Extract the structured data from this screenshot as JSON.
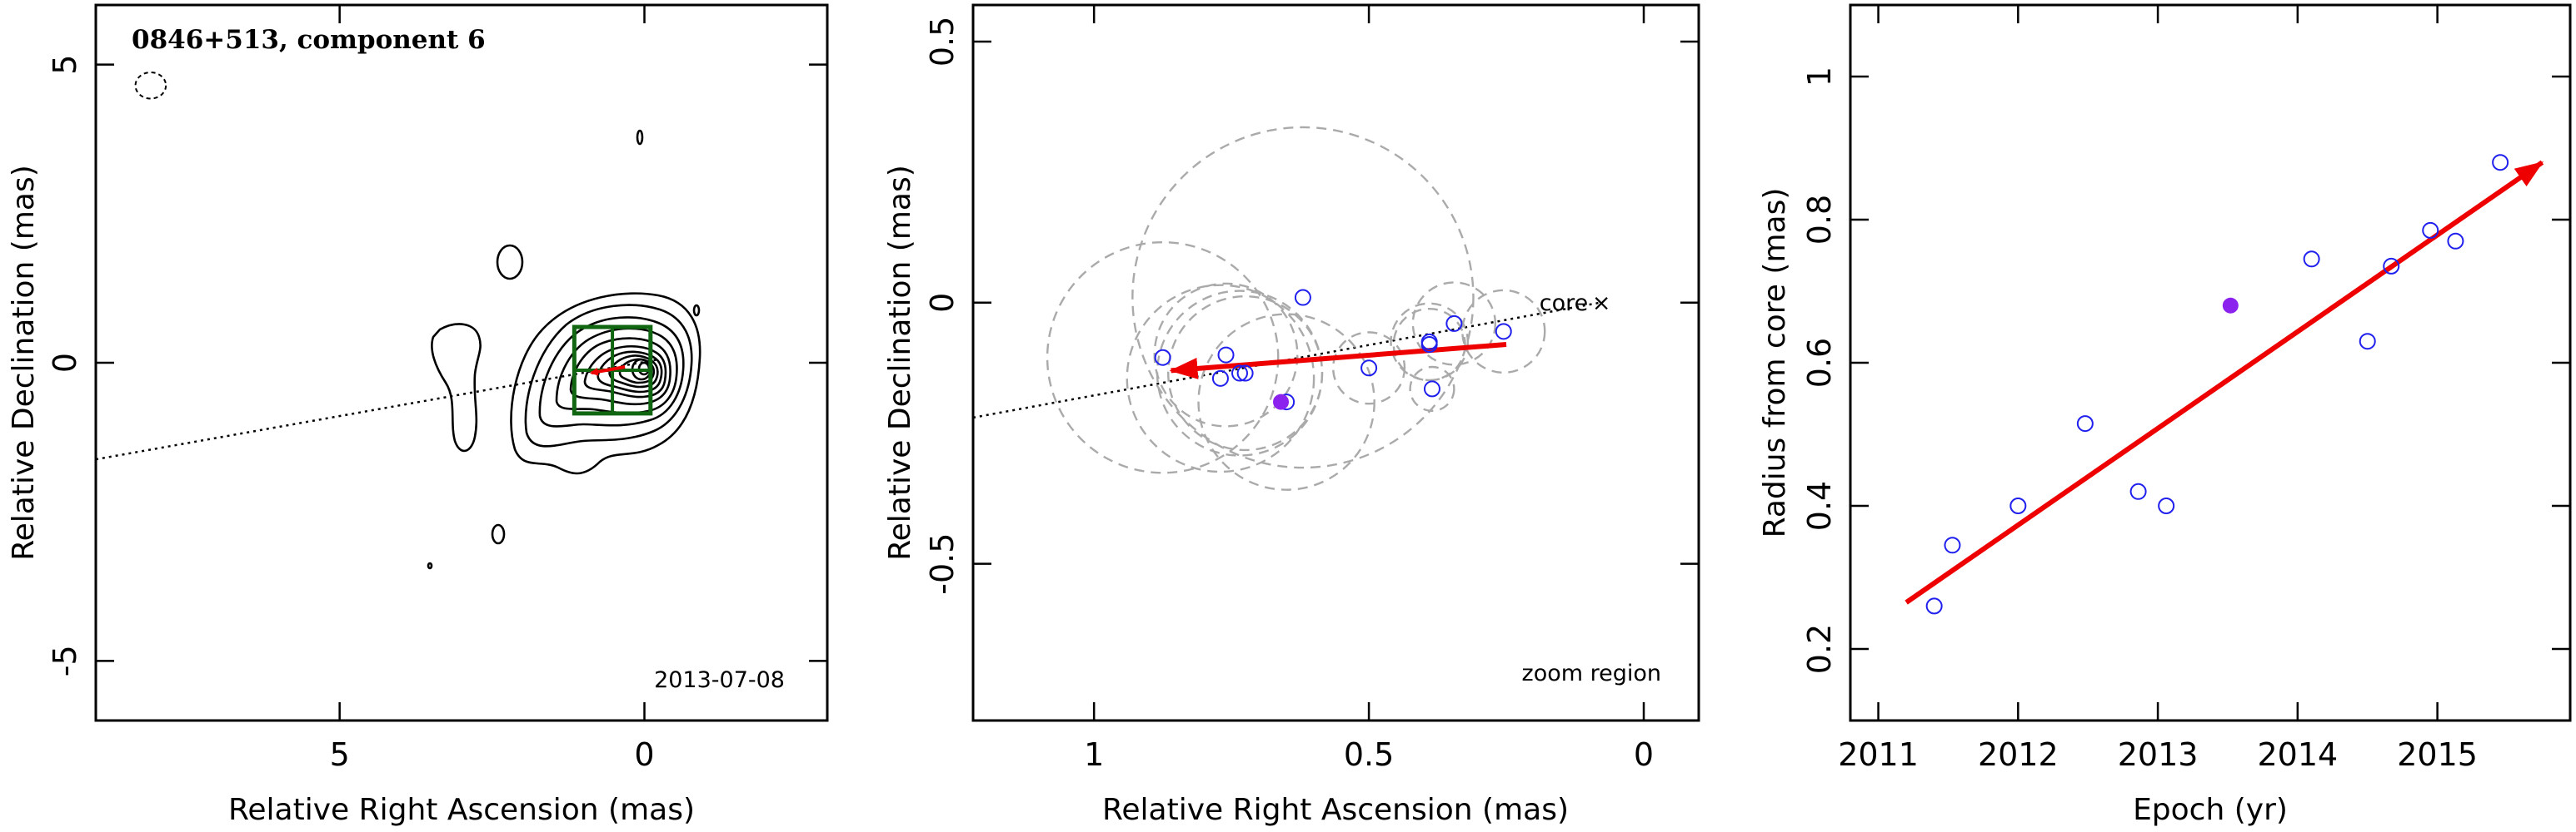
{
  "colors": {
    "red_arrow": "#ee0000",
    "open_point": "#2020ee",
    "filled_point": "#8b22ee",
    "zoom_box": "#116611",
    "dashed_circle": "#aaaaaa",
    "contour": "#000000"
  },
  "chart_data": [
    {
      "type": "contour",
      "title": "0846+513, component 6",
      "date_label": "2013-07-08",
      "xlabel": "Relative Right Ascension (mas)",
      "ylabel": "Relative Declination (mas)",
      "xlim": [
        9,
        -3
      ],
      "ylim": [
        -6,
        6
      ],
      "xticks": [
        5,
        0
      ],
      "yticks": [
        5,
        0,
        -5
      ],
      "jet_axis": [
        [
          9,
          -1.62
        ],
        [
          -0.2,
          0.05
        ]
      ],
      "beam": {
        "x": 8.1,
        "y": 4.65,
        "rx": 0.25,
        "ry": 0.22
      },
      "zoom_box": {
        "x": [
          1.15,
          -0.1
        ],
        "y": [
          -0.85,
          0.6
        ]
      },
      "arrow": {
        "from": [
          0.32,
          -0.07
        ],
        "to": [
          0.87,
          -0.17
        ]
      },
      "grid": false
    },
    {
      "type": "scatter",
      "subtitle": "zoom region",
      "core_label": "core",
      "core_marker": "×",
      "xlabel": "Relative Right Ascension (mas)",
      "ylabel": "Relative Declination (mas)",
      "xlim": [
        1.22,
        -0.1
      ],
      "ylim": [
        -0.8,
        0.57
      ],
      "xticks": [
        1,
        0.5,
        0
      ],
      "yticks": [
        0.5,
        0,
        -0.5
      ],
      "core": [
        0.08,
        0.0
      ],
      "jet_axis": [
        [
          1.22,
          -0.22
        ],
        [
          0.08,
          0.0
        ]
      ],
      "arrow": {
        "from": [
          0.25,
          -0.08
        ],
        "to": [
          0.86,
          -0.13
        ]
      },
      "points": [
        {
          "x": 0.875,
          "y": -0.105,
          "r": 0.21,
          "filled": false
        },
        {
          "x": 0.76,
          "y": -0.1,
          "r": 0.13,
          "filled": false
        },
        {
          "x": 0.77,
          "y": -0.145,
          "r": 0.17,
          "filled": false
        },
        {
          "x": 0.735,
          "y": -0.135,
          "r": 0.15,
          "filled": false
        },
        {
          "x": 0.725,
          "y": -0.135,
          "r": 0.14,
          "filled": false
        },
        {
          "x": 0.62,
          "y": 0.01,
          "r": 0.31,
          "filled": false
        },
        {
          "x": 0.65,
          "y": -0.19,
          "r": 0.16,
          "filled": false
        },
        {
          "x": 0.5,
          "y": -0.125,
          "r": 0.065,
          "filled": false
        },
        {
          "x": 0.39,
          "y": -0.075,
          "r": 0.07,
          "filled": false
        },
        {
          "x": 0.39,
          "y": -0.08,
          "r": 0.065,
          "filled": false
        },
        {
          "x": 0.385,
          "y": -0.165,
          "r": 0.04,
          "filled": false
        },
        {
          "x": 0.345,
          "y": -0.04,
          "r": 0.075,
          "filled": false
        },
        {
          "x": 0.255,
          "y": -0.055,
          "r": 0.075,
          "filled": false
        },
        {
          "x": 0.66,
          "y": -0.19,
          "r": 0.0,
          "filled": true
        }
      ],
      "grid": false
    },
    {
      "type": "scatter",
      "xlabel": "Epoch (yr)",
      "ylabel": "Radius from core (mas)",
      "xlim": [
        2010.8,
        2015.95
      ],
      "ylim": [
        0.1,
        1.1
      ],
      "xticks": [
        2011,
        2012,
        2013,
        2014,
        2015
      ],
      "yticks": [
        0.2,
        0.4,
        0.6,
        0.8,
        1
      ],
      "fit_arrow": {
        "from": [
          2011.2,
          0.265
        ],
        "to": [
          2015.75,
          0.88
        ]
      },
      "points": [
        {
          "x": 2011.4,
          "y": 0.26,
          "filled": false
        },
        {
          "x": 2011.53,
          "y": 0.345,
          "filled": false
        },
        {
          "x": 2012.0,
          "y": 0.4,
          "filled": false
        },
        {
          "x": 2012.48,
          "y": 0.515,
          "filled": false
        },
        {
          "x": 2012.86,
          "y": 0.42,
          "filled": false
        },
        {
          "x": 2013.06,
          "y": 0.4,
          "filled": false
        },
        {
          "x": 2013.52,
          "y": 0.68,
          "filled": true
        },
        {
          "x": 2014.1,
          "y": 0.745,
          "filled": false
        },
        {
          "x": 2014.5,
          "y": 0.63,
          "filled": false
        },
        {
          "x": 2014.67,
          "y": 0.735,
          "filled": false
        },
        {
          "x": 2014.95,
          "y": 0.785,
          "filled": false
        },
        {
          "x": 2015.13,
          "y": 0.77,
          "filled": false
        },
        {
          "x": 2015.45,
          "y": 0.88,
          "filled": false
        }
      ],
      "grid": false
    }
  ]
}
